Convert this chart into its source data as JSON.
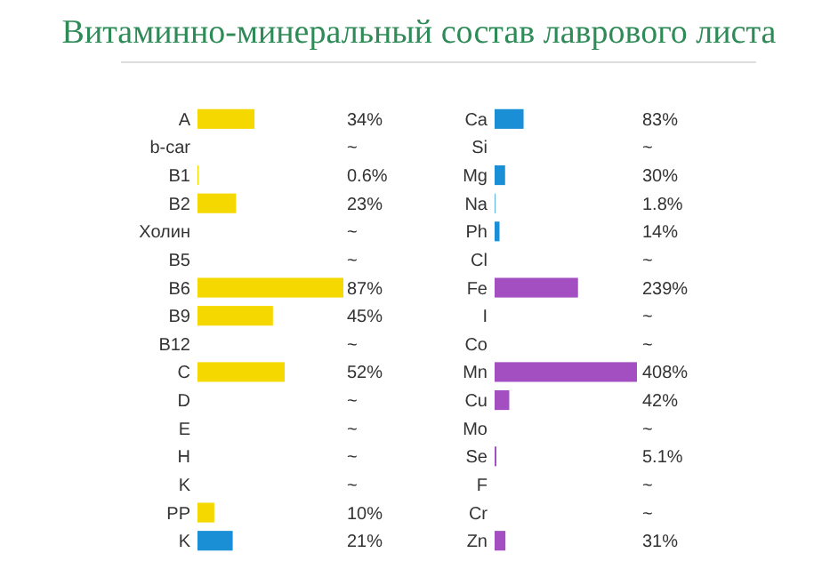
{
  "chart_data": [
    {
      "type": "bar",
      "orientation": "horizontal",
      "title": "Витаминно-минеральный состав лаврового листа",
      "categories": [
        "A",
        "b-car",
        "B1",
        "B2",
        "Холин",
        "B5",
        "B6",
        "B9",
        "B12",
        "C",
        "D",
        "E",
        "H",
        "K",
        "PP",
        "K"
      ],
      "values": [
        34,
        null,
        0.6,
        23,
        null,
        null,
        87,
        45,
        null,
        52,
        null,
        null,
        null,
        null,
        10,
        21
      ],
      "colors": [
        "#f5d800",
        null,
        "#f5d800",
        "#f5d800",
        null,
        null,
        "#f5d800",
        "#f5d800",
        null,
        "#f5d800",
        null,
        null,
        null,
        null,
        "#f5d800",
        "#1a8fd6"
      ],
      "value_labels": [
        "34%",
        "~",
        "0.6%",
        "23%",
        "~",
        "~",
        "87%",
        "45%",
        "~",
        "52%",
        "~",
        "~",
        "~",
        "~",
        "10%",
        "21%"
      ]
    },
    {
      "type": "bar",
      "orientation": "horizontal",
      "categories": [
        "Ca",
        "Si",
        "Mg",
        "Na",
        "Ph",
        "Cl",
        "Fe",
        "I",
        "Co",
        "Mn",
        "Cu",
        "Mo",
        "Se",
        "F",
        "Cr",
        "Zn"
      ],
      "values": [
        83,
        null,
        30,
        1.8,
        14,
        null,
        239,
        null,
        null,
        408,
        42,
        null,
        5.1,
        null,
        null,
        31
      ],
      "colors": [
        "#1a8fd6",
        null,
        "#1a8fd6",
        "#1a8fd6",
        "#1a8fd6",
        null,
        "#a34fc1",
        null,
        null,
        "#a34fc1",
        "#a34fc1",
        null,
        "#a34fc1",
        null,
        null,
        "#a34fc1"
      ],
      "value_labels": [
        "83%",
        "~",
        "30%",
        "1.8%",
        "14%",
        "~",
        "239%",
        "~",
        "~",
        "408%",
        "42%",
        "~",
        "5.1%",
        "~",
        "~",
        "31%"
      ]
    }
  ]
}
